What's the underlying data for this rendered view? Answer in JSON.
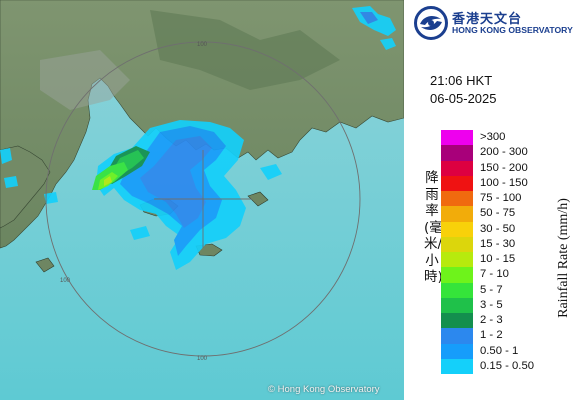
{
  "header": {
    "org_name_zh": "香港天文台",
    "org_name_en": "HONG KONG OBSERVATORY"
  },
  "timestamp": {
    "time": "21:06 HKT",
    "date": "06-05-2025"
  },
  "legend": {
    "title_en": "Rainfall Rate (mm/h)",
    "title_zh": "降雨率(毫米/小時)",
    "items": [
      {
        "label": ">300",
        "color": "#ee00ee"
      },
      {
        "label": "200 - 300",
        "color": "#a8007a"
      },
      {
        "label": "150 - 200",
        "color": "#dd0041"
      },
      {
        "label": "100 - 150",
        "color": "#ef1212"
      },
      {
        "label": "75 - 100",
        "color": "#f06a0f"
      },
      {
        "label": "50 - 75",
        "color": "#f2ac0a"
      },
      {
        "label": "30 - 50",
        "color": "#f8d10a"
      },
      {
        "label": "15 - 30",
        "color": "#dcd60c"
      },
      {
        "label": "10 - 15",
        "color": "#b7ea0d"
      },
      {
        "label": "7 - 10",
        "color": "#6ef31b"
      },
      {
        "label": "5 - 7",
        "color": "#35e43a"
      },
      {
        "label": "3 - 5",
        "color": "#1fc14a"
      },
      {
        "label": "2 - 3",
        "color": "#138f4e"
      },
      {
        "label": "1 - 2",
        "color": "#2c88ee"
      },
      {
        "label": "0.50 - 1",
        "color": "#169dfb"
      },
      {
        "label": "0.15 - 0.50",
        "color": "#14d0fa"
      }
    ]
  },
  "map": {
    "range_labels": [
      "100",
      "100",
      "100"
    ],
    "copyright": "© Hong Kong Observatory"
  }
}
